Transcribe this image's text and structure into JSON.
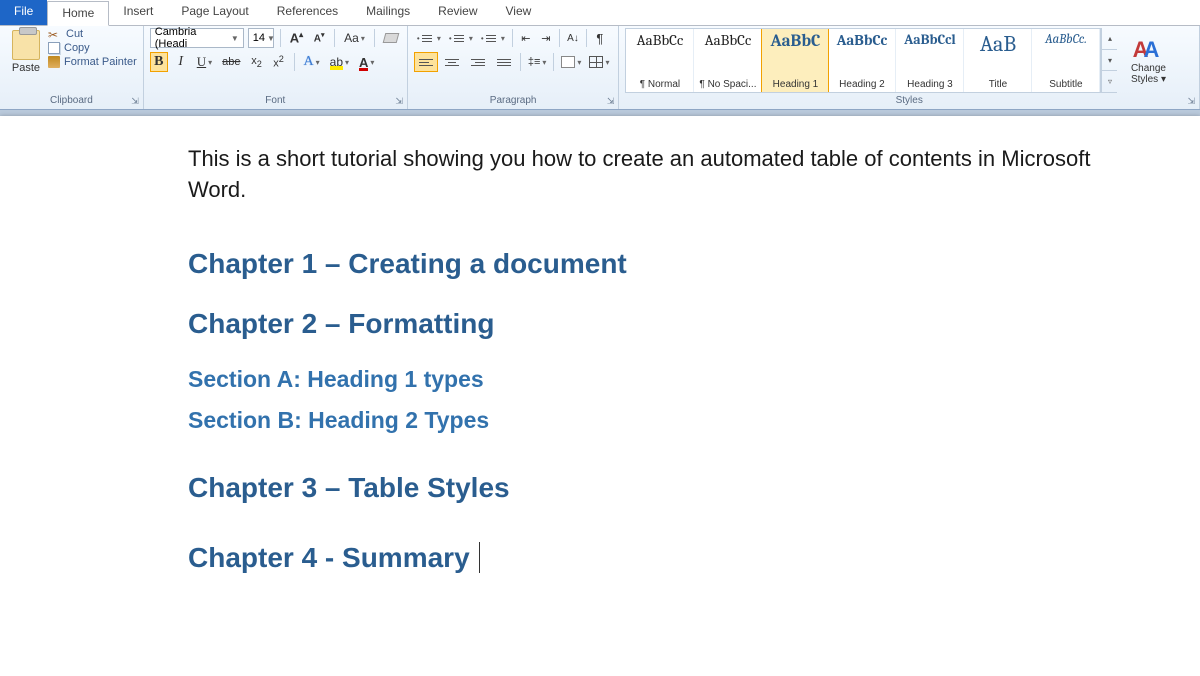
{
  "tabs": {
    "file": "File",
    "items": [
      "Home",
      "Insert",
      "Page Layout",
      "References",
      "Mailings",
      "Review",
      "View"
    ],
    "active_index": 0
  },
  "clipboard": {
    "paste": "Paste",
    "cut": "Cut",
    "copy": "Copy",
    "format_painter": "Format Painter",
    "group": "Clipboard"
  },
  "font": {
    "name": "Cambria (Headi",
    "size": "14",
    "group": "Font"
  },
  "paragraph": {
    "group": "Paragraph"
  },
  "styles": {
    "group": "Styles",
    "change": "Change Styles ▾",
    "items": [
      {
        "preview": "AaBbCc",
        "label": "¶ Normal",
        "color": "#222",
        "size": "15px",
        "weight": "400",
        "selected": false
      },
      {
        "preview": "AaBbCc",
        "label": "¶ No Spaci...",
        "color": "#222",
        "size": "15px",
        "weight": "400",
        "selected": false
      },
      {
        "preview": "AaBbC",
        "label": "Heading 1",
        "color": "#2a5d8f",
        "size": "17px",
        "weight": "700",
        "selected": true
      },
      {
        "preview": "AaBbCc",
        "label": "Heading 2",
        "color": "#2a5d8f",
        "size": "15px",
        "weight": "700",
        "selected": false
      },
      {
        "preview": "AaBbCcl",
        "label": "Heading 3",
        "color": "#2a5d8f",
        "size": "14px",
        "weight": "700",
        "selected": false
      },
      {
        "preview": "AaB",
        "label": "Title",
        "color": "#2a5d8f",
        "size": "22px",
        "weight": "400",
        "selected": false
      },
      {
        "preview": "AaBbCc.",
        "label": "Subtitle",
        "color": "#2a5d8f",
        "size": "13px",
        "weight": "400",
        "font_style": "italic",
        "selected": false
      }
    ]
  },
  "doc": {
    "intro": "This is a short tutorial showing you how to create an automated table of contents in Microsoft Word.",
    "h": [
      "Chapter 1 – Creating a document",
      "Chapter 2 – Formatting",
      "Section A: Heading 1 types",
      "Section B: Heading 2 Types",
      "Chapter 3 – Table Styles",
      "Chapter 4 - Summary"
    ]
  },
  "colors": {
    "heading1": "#2a5d8f",
    "heading2": "#3272ad",
    "ribbon_accent": "#1e66c7"
  }
}
